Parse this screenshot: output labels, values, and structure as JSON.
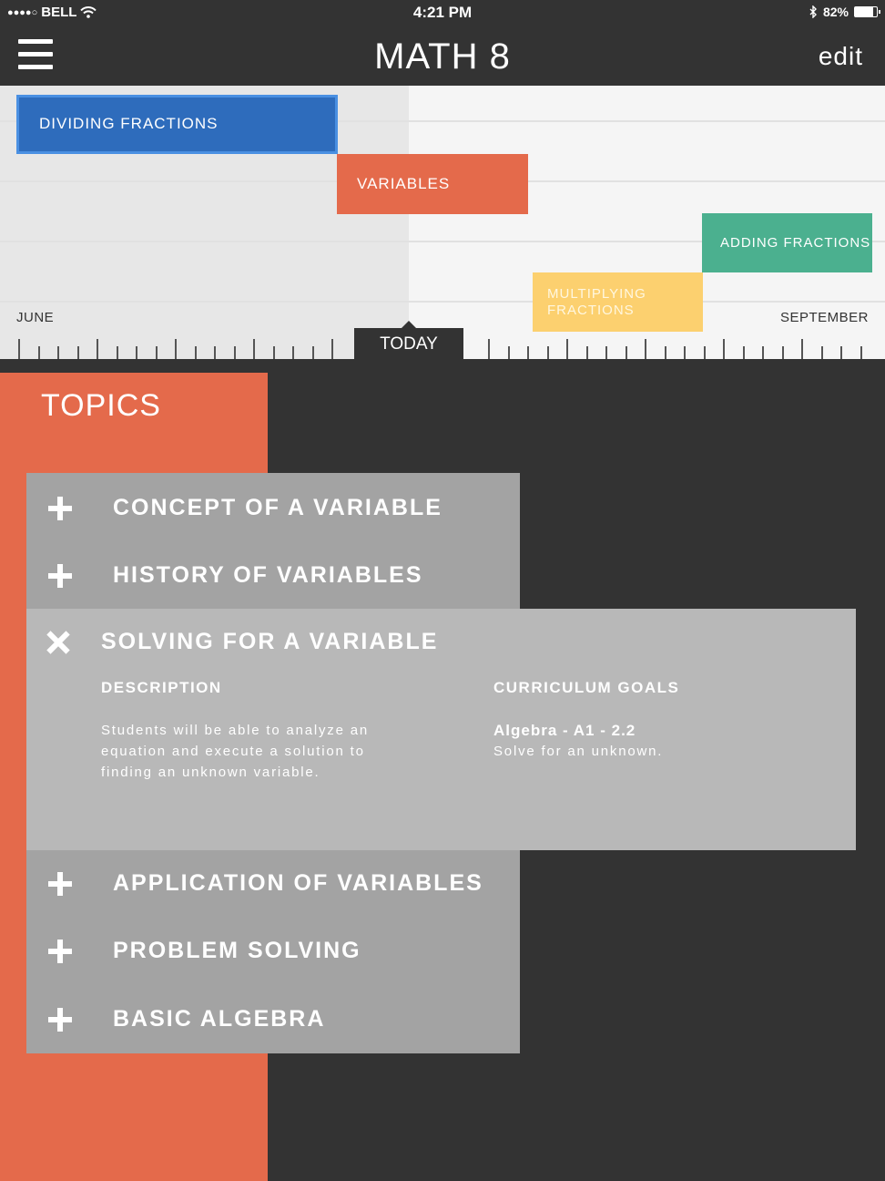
{
  "status_bar": {
    "carrier": "BELL",
    "signal_dots": "●●●●○",
    "time": "4:21 PM",
    "battery_percent": "82%",
    "battery_level": 0.82
  },
  "nav": {
    "title": "MATH 8",
    "edit_label": "edit"
  },
  "timeline": {
    "start_label": "JUNE",
    "end_label": "SEPTEMBER",
    "today_label": "TODAY",
    "bars": [
      {
        "label": "DIVIDING FRACTIONS",
        "color": "#2e6cbc"
      },
      {
        "label": "VARIABLES",
        "color": "#e46a4b"
      },
      {
        "label": "ADDING FRACTIONS",
        "color": "#4bb08f"
      },
      {
        "label": "MULTIPLYING FRACTIONS",
        "color": "#fcd06f"
      }
    ]
  },
  "topics": {
    "heading": "TOPICS",
    "items": [
      {
        "label": "CONCEPT OF A VARIABLE"
      },
      {
        "label": "HISTORY OF VARIABLES"
      },
      {
        "label": "APPLICATION OF VARIABLES"
      },
      {
        "label": "PROBLEM SOLVING"
      },
      {
        "label": "BASIC ALGEBRA"
      }
    ],
    "expanded": {
      "title": "SOLVING FOR A VARIABLE",
      "description_heading": "DESCRIPTION",
      "description_lines": [
        "Students will be able to analyze an",
        "equation and execute a solution to",
        "finding an unknown variable."
      ],
      "goals_heading": "CURRICULUM GOALS",
      "goal_code": "Algebra - A1 - 2.2",
      "goal_text": "Solve for an unknown."
    }
  }
}
